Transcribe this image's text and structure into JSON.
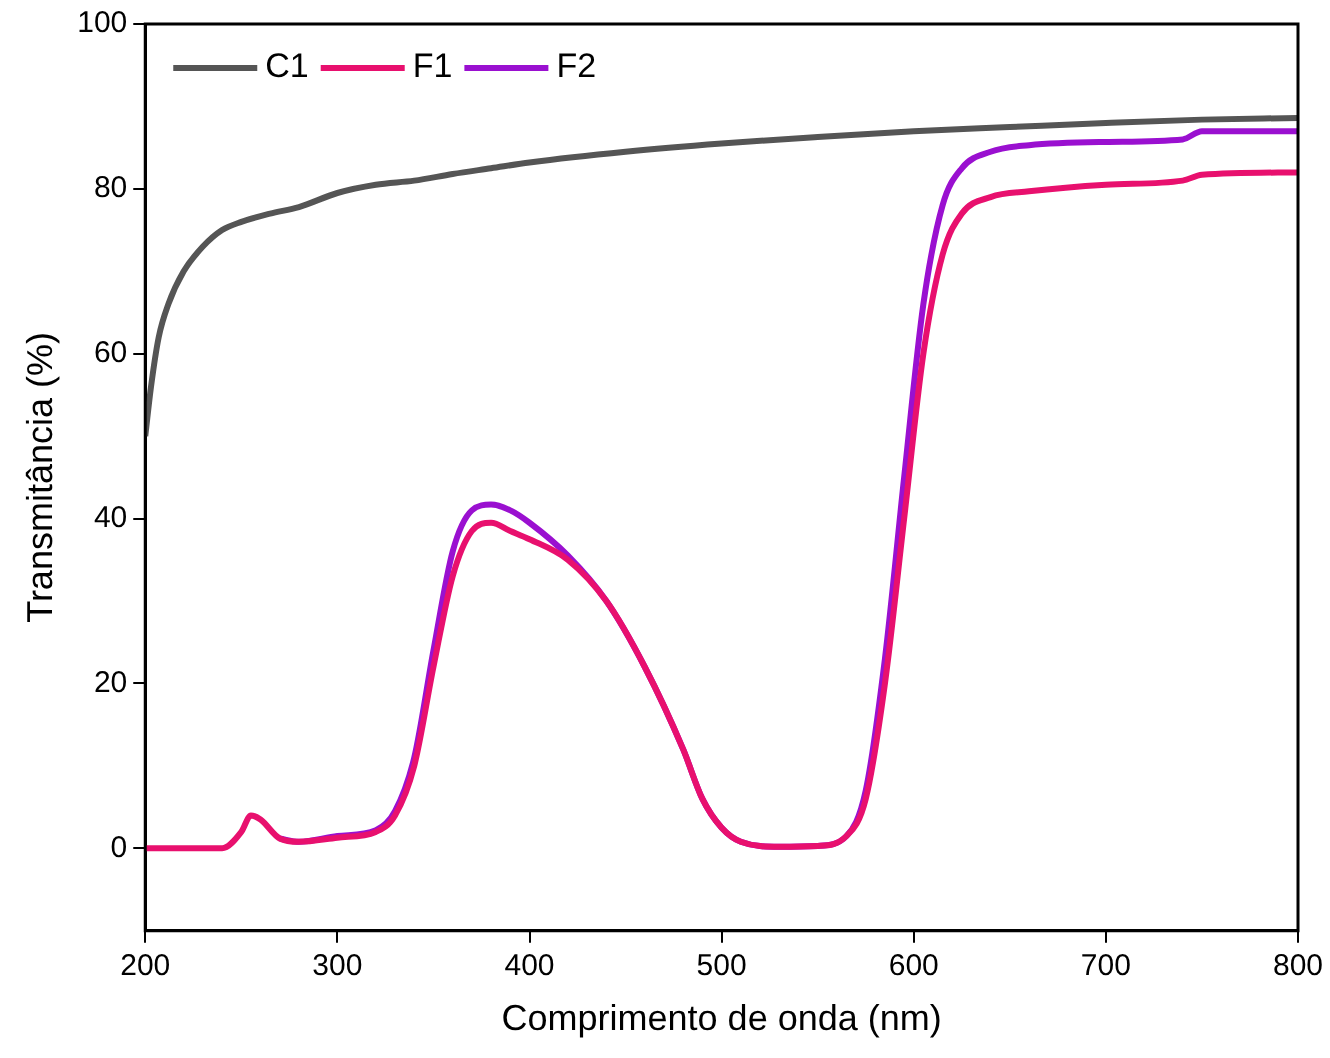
{
  "chart_data": {
    "type": "line",
    "xlabel": "Comprimento de onda (nm)",
    "ylabel": "Transmitância (%)",
    "xlim": [
      200,
      800
    ],
    "xticks": [
      200,
      300,
      400,
      500,
      600,
      700,
      800
    ],
    "ylim": [
      -10,
      100
    ],
    "yticks": [
      0,
      20,
      40,
      60,
      80,
      100
    ],
    "grid": false,
    "legend": "top left",
    "marker": "none",
    "line_style": "solid",
    "series": [
      {
        "name": "C1",
        "color": "#555555",
        "x": [
          200,
          203,
          207,
          212,
          220,
          230,
          240,
          250,
          265,
          280,
          300,
          320,
          340,
          360,
          380,
          400,
          450,
          500,
          550,
          600,
          650,
          700,
          750,
          800
        ],
        "values": [
          50,
          56,
          62,
          66,
          70,
          73,
          75,
          76,
          77,
          77.8,
          79.5,
          80.5,
          81,
          81.8,
          82.5,
          83.2,
          84.5,
          85.5,
          86.3,
          87,
          87.5,
          88,
          88.4,
          88.6
        ]
      },
      {
        "name": "F1",
        "color": "#e8106e",
        "x": [
          200,
          240,
          250,
          255,
          260,
          270,
          280,
          300,
          320,
          330,
          340,
          350,
          360,
          370,
          380,
          390,
          400,
          420,
          440,
          460,
          480,
          490,
          500,
          510,
          530,
          550,
          565,
          575,
          585,
          595,
          605,
          615,
          625,
          640,
          660,
          700,
          740,
          750,
          800
        ],
        "values": [
          0,
          0,
          2,
          4,
          3.5,
          1.2,
          0.8,
          1.3,
          2,
          4,
          10,
          22,
          33,
          38.5,
          39.5,
          38.5,
          37.5,
          35,
          30,
          22,
          12,
          6,
          2.5,
          0.8,
          0.2,
          0.3,
          1.5,
          6,
          20,
          40,
          60,
          72,
          77,
          79,
          79.7,
          80.5,
          81,
          81.7,
          82
        ]
      },
      {
        "name": "F2",
        "color": "#9a10d0",
        "x": [
          270,
          280,
          300,
          320,
          330,
          340,
          350,
          360,
          370,
          380,
          390,
          400,
          420,
          440,
          460,
          480,
          490,
          500,
          510,
          530,
          550,
          565,
          575,
          585,
          595,
          605,
          615,
          625,
          640,
          660,
          700,
          740,
          750,
          800
        ],
        "values": [
          1.2,
          0.8,
          1.5,
          2.2,
          4.5,
          11,
          24,
          36,
          41,
          41.7,
          41,
          39.5,
          35.5,
          30,
          22,
          12,
          6,
          2.5,
          0.8,
          0.2,
          0.3,
          1.5,
          7,
          23,
          45,
          66,
          78,
          82.5,
          84.5,
          85.3,
          85.7,
          86,
          87,
          87
        ]
      }
    ]
  }
}
